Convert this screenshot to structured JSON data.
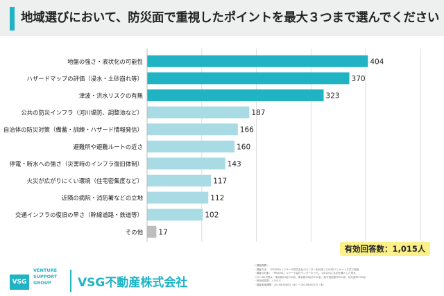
{
  "title": "地域選びにおいて、防災面で重視したポイントを最大３つまで選んでください",
  "respondents_label": "有効回答数：1,015人",
  "brand": {
    "logo_mark": "VSG",
    "logo_lines": [
      "VENTURE",
      "SUPPORT",
      "GROUP"
    ],
    "company": "VSG不動産株式会社"
  },
  "colors": {
    "top3": "#1fb3c4",
    "others": "#a8dbe3",
    "misc": "#bdbdbd",
    "accent": "#1fb3c4",
    "highlight": "#fbf08a"
  },
  "notes": [
    "＜調査概要＞",
    "・調査方法：「PRIZMA（リサーチ株式会社のモニターを利用したWEBアンケート方式で実施",
    "・調査の対象：「PRIZMA」リサーチ会社モニターのうち、１年以内に住宅を購入した男女",
    "（20〜60代男女・東京都23区230名、東京都23区外230名、政令指定都市230名、地方都市230名）",
    "・有効回答数：1,015人",
    "・調査実施期間：2025年8月6日（水）〜2025年8月7日（木）"
  ],
  "chart_data": {
    "type": "bar",
    "orientation": "horizontal",
    "categories": [
      "地盤の強さ・液状化の可能性",
      "ハザードマップの評価（浸水・土砂崩れ等）",
      "津波・洪水リスクの有無",
      "公共の防災インフラ（河川堤防、調整池など）",
      "自治体の防災対策（備蓄・訓練・ハザード情報発信）",
      "避難所や避難ルートの近さ",
      "停電・断水への強さ（災害時のインフラ復旧体制）",
      "火災が広がりにくい環境（住宅密集度など）",
      "近隣の病院・消防署などの立地",
      "交通インフラの復旧の早さ（幹線道路・鉄道等）",
      "その他"
    ],
    "values": [
      404,
      370,
      323,
      187,
      166,
      160,
      143,
      117,
      112,
      102,
      17
    ],
    "xlim": [
      0,
      500
    ],
    "xticks": [
      "0",
      "100",
      "200",
      "300",
      "400",
      "500"
    ],
    "grid": true,
    "legend": "none"
  }
}
